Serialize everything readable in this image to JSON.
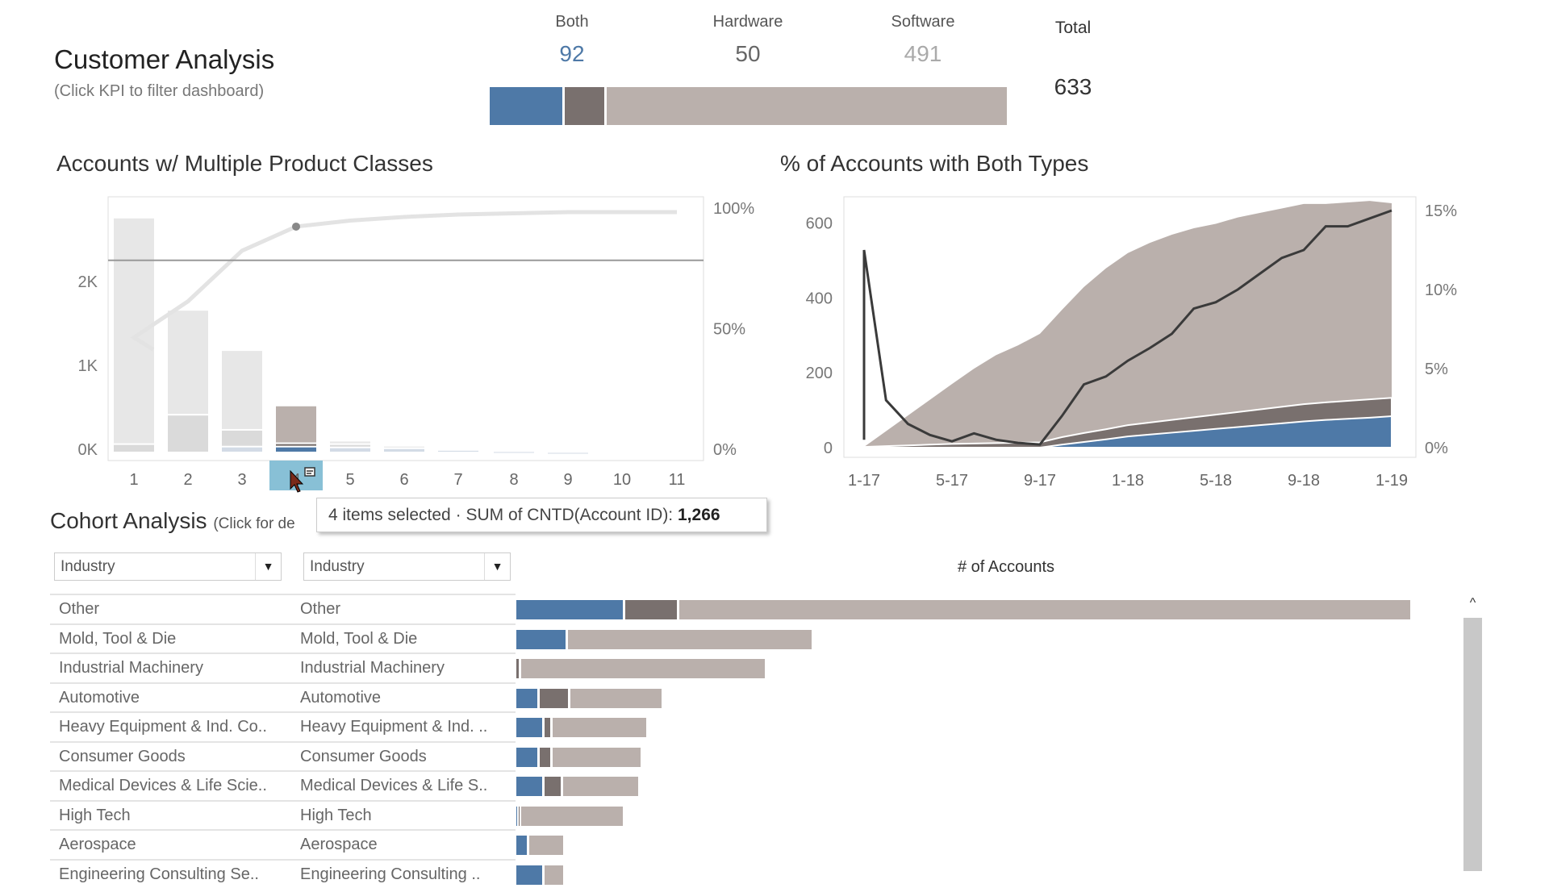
{
  "header": {
    "title": "Customer Analysis",
    "subtitle": "(Click KPI to filter dashboard)"
  },
  "kpis": [
    {
      "label": "Both",
      "value": "92",
      "color": "#4e79a7"
    },
    {
      "label": "Hardware",
      "value": "50",
      "color": "#79706e"
    },
    {
      "label": "Software",
      "value": "491",
      "color": "#bab0ac"
    }
  ],
  "total": {
    "label": "Total",
    "value": "633"
  },
  "colors": {
    "both": "#4e79a7",
    "hardware": "#79706e",
    "software": "#bab0ac",
    "both_faded": "#d3dbe6",
    "hardware_faded": "#dadada",
    "software_faded": "#e7e7e7",
    "line": "#3a3a3a"
  },
  "chart_data": [
    {
      "type": "bar",
      "title": "Accounts w/ Multiple Product Classes",
      "categories": [
        "1",
        "2",
        "3",
        "4",
        "5",
        "6",
        "7",
        "8",
        "9",
        "10",
        "11"
      ],
      "series": [
        {
          "name": "Both",
          "values": [
            0,
            0,
            0.07,
            0.07,
            0.06,
            0.05,
            0.03,
            0.015,
            0.005,
            0,
            0
          ]
        },
        {
          "name": "Hardware",
          "values": [
            0.1,
            0.45,
            0.2,
            0.04,
            0.04,
            0.0,
            0.0,
            0.0,
            0,
            0,
            0
          ]
        },
        {
          "name": "Software",
          "values": [
            2.7,
            1.25,
            0.95,
            0.45,
            0.04,
            0.03,
            0.0,
            0.0,
            0,
            0,
            0
          ]
        }
      ],
      "pareto_pct": [
        48,
        63,
        84,
        94,
        96.5,
        98,
        99,
        99.5,
        100,
        100,
        100
      ],
      "reference_line_pct": 80,
      "selected": "4",
      "y_ticks": [
        "0K",
        "1K",
        "2K"
      ],
      "y_tick_values": [
        0,
        1,
        2
      ],
      "ylim": [
        0,
        3.05
      ],
      "y2_ticks": [
        "0%",
        "50%",
        "100%"
      ],
      "y2_tick_values": [
        0,
        50,
        100
      ],
      "y2lim": [
        -2,
        101
      ]
    },
    {
      "type": "area",
      "title": "% of Accounts with Both Types",
      "x": [
        "1-17",
        "2-17",
        "3-17",
        "4-17",
        "5-17",
        "6-17",
        "7-17",
        "8-17",
        "9-17",
        "10-17",
        "11-17",
        "12-17",
        "1-18",
        "2-18",
        "3-18",
        "4-18",
        "5-18",
        "6-18",
        "7-18",
        "8-18",
        "9-18",
        "10-18",
        "11-18",
        "12-18",
        "1-19"
      ],
      "series": [
        {
          "name": "Both",
          "values": [
            0,
            0,
            0,
            0,
            0,
            0,
            0,
            0,
            0,
            8,
            15,
            22,
            30,
            35,
            40,
            45,
            50,
            55,
            60,
            65,
            70,
            74,
            77,
            80,
            84
          ]
        },
        {
          "name": "Hardware",
          "values": [
            2,
            4,
            6,
            8,
            10,
            11,
            12,
            13,
            14,
            20,
            24,
            27,
            30,
            32,
            34,
            36,
            38,
            40,
            42,
            44,
            46,
            47,
            48,
            49,
            49
          ]
        },
        {
          "name": "Software",
          "values": [
            0,
            40,
            80,
            120,
            160,
            200,
            235,
            260,
            290,
            340,
            390,
            430,
            460,
            480,
            495,
            505,
            510,
            520,
            525,
            530,
            535,
            530,
            530,
            530,
            520
          ]
        }
      ],
      "line": {
        "name": "% Both",
        "values": [
          12.5,
          3,
          1.5,
          0.8,
          0.4,
          0.9,
          0.5,
          0.3,
          0.2,
          2,
          4,
          4.5,
          5.5,
          6.3,
          7.2,
          8.8,
          9.2,
          10,
          11,
          12,
          12.5,
          14,
          14,
          14.5,
          15
        ]
      },
      "x_ticks": [
        "1-17",
        "5-17",
        "9-17",
        "1-18",
        "5-18",
        "9-18",
        "1-19"
      ],
      "y_ticks": [
        "0",
        "200",
        "400",
        "600"
      ],
      "y_tick_values": [
        0,
        200,
        400,
        600
      ],
      "ylim": [
        0,
        640
      ],
      "y2_ticks": [
        "0%",
        "5%",
        "10%",
        "15%"
      ],
      "y2_tick_values": [
        0,
        5,
        10,
        15
      ],
      "y2lim": [
        0,
        15.3
      ]
    },
    {
      "type": "bar",
      "orientation": "horizontal",
      "title": "# of Accounts",
      "xlim": [
        0,
        360
      ],
      "categories": [
        "Other",
        "Mold, Tool & Die",
        "Industrial Machinery",
        "Automotive",
        "Heavy Equipment & Ind. Co..",
        "Consumer Goods",
        "Medical Devices & Life Scie..",
        "High Tech",
        "Aerospace",
        "Engineering Consulting Se.."
      ],
      "categories2": [
        "Other",
        "Mold, Tool & Die",
        "Industrial Machinery",
        "Automotive",
        "Heavy Equipment & Ind. ..",
        "Consumer Goods",
        "Medical Devices & Life S..",
        "High Tech",
        "Aerospace",
        "Engineering Consulting .."
      ],
      "series": [
        {
          "name": "Both",
          "values": [
            42,
            20,
            0,
            9,
            11,
            9,
            11,
            1,
            5,
            11
          ]
        },
        {
          "name": "Hardware",
          "values": [
            21,
            0,
            2,
            12,
            3,
            5,
            7,
            1,
            0,
            0
          ]
        },
        {
          "name": "Software",
          "values": [
            283,
            95,
            95,
            36,
            37,
            35,
            30,
            40,
            14,
            8
          ]
        }
      ]
    }
  ],
  "tooltip": {
    "selected": "4 items selected",
    "sep": "·",
    "measure": "SUM of CNTD(Account ID):",
    "value": "1,266"
  },
  "cohort": {
    "title": "Cohort Analysis",
    "hint": "(Click for de",
    "dropdown1": "Industry",
    "dropdown2": "Industry",
    "axis_title": "# of Accounts"
  }
}
